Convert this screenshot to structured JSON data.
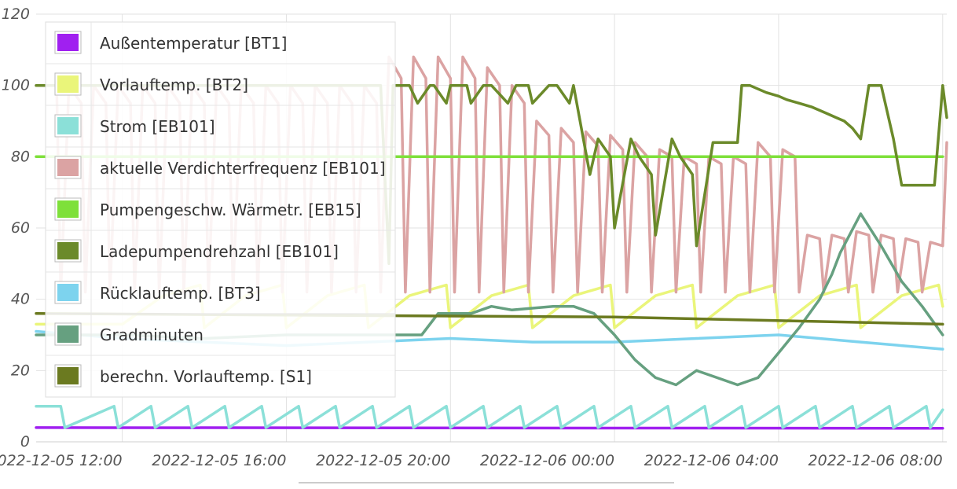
{
  "chart_data": {
    "type": "line",
    "ylim": [
      0,
      120
    ],
    "y_ticks": [
      "0",
      "20",
      "40",
      "60",
      "80",
      "100",
      "120"
    ],
    "x_ticks": [
      "2022-12-05 12:00",
      "2022-12-05 16:00",
      "2022-12-05 20:00",
      "2022-12-06 00:00",
      "2022-12-06 04:00",
      "2022-12-06 08:00"
    ],
    "x_hours": [
      0,
      4,
      8,
      12,
      16,
      20
    ],
    "x_range_hours": [
      -2.1,
      20.1
    ],
    "grid": true,
    "legend_position": "top-left",
    "series": [
      {
        "name": "Außentemperatur [BT1]",
        "color": "#a020f0",
        "x": [
          -2.1,
          20
        ],
        "y": [
          4,
          3.8
        ]
      },
      {
        "name": "Vorlauftemp. [BT2]",
        "color": "#eaf57a",
        "x": [
          -2.1,
          0,
          1,
          1.9,
          2,
          3,
          3.9,
          4,
          5,
          5.9,
          6,
          7,
          7.9,
          8,
          9,
          9.9,
          10,
          11,
          11.9,
          12,
          13,
          13.9,
          14,
          15,
          15.9,
          16,
          17,
          17.9,
          18,
          19,
          19.9,
          20
        ],
        "y": [
          33,
          33,
          41,
          44,
          32,
          41,
          44,
          32,
          41,
          44,
          32,
          41,
          44,
          32,
          41,
          44,
          32,
          41,
          44,
          32,
          41,
          44,
          32,
          41,
          44,
          32,
          41,
          44,
          32,
          41,
          44,
          38
        ]
      },
      {
        "name": "Strom [EB101]",
        "color": "#8be0d8",
        "x": [
          -2.1,
          -1.5,
          -1.4,
          -0.2,
          -0.1,
          0.7,
          0.8,
          1.6,
          1.7,
          2.5,
          2.6,
          3.4,
          3.5,
          4.3,
          4.4,
          5.2,
          5.3,
          6.1,
          6.2,
          7,
          7.1,
          7.9,
          8,
          8.8,
          8.9,
          9.7,
          9.8,
          10.6,
          10.7,
          11.5,
          11.6,
          12.4,
          12.5,
          13.3,
          13.4,
          14.2,
          14.3,
          15.1,
          15.2,
          16,
          16.1,
          16.9,
          17,
          17.8,
          17.9,
          18.7,
          18.8,
          19.6,
          19.7,
          20
        ],
        "y": [
          10,
          10,
          4,
          10,
          4,
          10,
          4,
          10,
          4,
          10,
          4,
          10,
          4,
          10,
          4,
          10,
          4,
          10,
          4,
          10,
          4,
          10,
          4,
          10,
          4,
          10,
          4,
          10,
          4,
          10,
          4,
          10,
          4,
          10,
          4,
          10,
          4,
          10,
          4,
          10,
          4,
          10,
          4,
          10,
          4,
          10,
          4,
          10,
          4,
          9
        ]
      },
      {
        "name": "aktuelle Verdichterfrequenz [EB101]",
        "color": "#dba3a3",
        "x": [
          -2.1,
          -1.6,
          -1.5,
          -1.3,
          -1,
          -0.9,
          -0.7,
          -0.4,
          -0.3,
          -0.1,
          0.2,
          0.3,
          0.5,
          0.8,
          0.9,
          1.1,
          1.4,
          1.5,
          1.7,
          2,
          2.1,
          2.3,
          2.6,
          2.7,
          2.9,
          3.2,
          3.3,
          3.5,
          3.8,
          3.9,
          4.1,
          4.4,
          4.5,
          4.7,
          5,
          5.1,
          5.3,
          5.6,
          5.7,
          5.9,
          6.2,
          6.3,
          6.5,
          6.8,
          6.9,
          7.1,
          7.4,
          7.5,
          7.7,
          8,
          8.1,
          8.3,
          8.6,
          8.7,
          8.9,
          9.2,
          9.3,
          9.5,
          9.8,
          9.9,
          10.1,
          10.4,
          10.5,
          10.7,
          11,
          11.1,
          11.3,
          11.6,
          11.7,
          11.9,
          12.2,
          12.3,
          12.5,
          12.8,
          12.9,
          13.1,
          13.4,
          13.5,
          13.7,
          14,
          14.1,
          14.3,
          14.6,
          14.7,
          14.9,
          15.2,
          15.3,
          15.5,
          15.8,
          15.9,
          16.1,
          16.4,
          16.5,
          16.7,
          17,
          17.1,
          17.3,
          17.6,
          17.7,
          17.9,
          18.2,
          18.3,
          18.5,
          18.8,
          18.9,
          19.1,
          19.4,
          19.5,
          19.7,
          20,
          20.1
        ],
        "y": [
          100,
          100,
          42,
          100,
          95,
          42,
          100,
          95,
          42,
          100,
          95,
          42,
          100,
          95,
          42,
          100,
          95,
          42,
          100,
          95,
          42,
          100,
          95,
          42,
          100,
          95,
          42,
          100,
          95,
          42,
          100,
          95,
          42,
          100,
          95,
          42,
          100,
          95,
          42,
          100,
          95,
          42,
          108,
          102,
          42,
          108,
          102,
          42,
          108,
          102,
          42,
          108,
          102,
          42,
          105,
          100,
          42,
          100,
          95,
          42,
          90,
          86,
          42,
          88,
          84,
          42,
          87,
          83,
          42,
          86,
          82,
          42,
          84,
          80,
          42,
          82,
          80,
          42,
          80,
          78,
          42,
          80,
          78,
          42,
          80,
          78,
          42,
          84,
          80,
          42,
          82,
          80,
          42,
          58,
          57,
          42,
          58,
          57,
          42,
          59,
          58,
          42,
          58,
          57,
          42,
          57,
          56,
          42,
          56,
          55,
          84
        ]
      },
      {
        "name": "Pumpengeschw. Wärmetr. [EB15]",
        "color": "#7ee03a",
        "x": [
          -2.1,
          20
        ],
        "y": [
          80,
          80
        ]
      },
      {
        "name": "Ladepumpendrehzahl [EB101]",
        "color": "#6b8a2a",
        "x": [
          -2.1,
          6.3,
          6.5,
          6.6,
          7,
          7.2,
          7.5,
          7.6,
          7.9,
          8,
          8.4,
          8.5,
          8.8,
          9,
          9.4,
          9.6,
          9.9,
          10,
          10.4,
          10.6,
          10.9,
          11,
          11.4,
          11.6,
          11.9,
          12,
          12.4,
          12.6,
          12.9,
          13,
          13.4,
          13.6,
          13.9,
          14,
          14.4,
          14.6,
          15,
          15.1,
          15.3,
          15.5,
          15.7,
          16,
          16.2,
          16.5,
          16.8,
          17,
          17.2,
          17.4,
          17.6,
          17.8,
          18,
          18.2,
          18.5,
          18.8,
          19,
          19.2,
          19.5,
          19.8,
          20,
          20.1
        ],
        "y": [
          100,
          100,
          50,
          100,
          100,
          95,
          100,
          100,
          95,
          100,
          100,
          95,
          100,
          100,
          95,
          100,
          100,
          95,
          100,
          100,
          95,
          100,
          75,
          85,
          80,
          60,
          85,
          80,
          75,
          58,
          85,
          80,
          75,
          55,
          84,
          84,
          84,
          100,
          100,
          99,
          98,
          97,
          96,
          95,
          94,
          93,
          92,
          91,
          90,
          88,
          85,
          100,
          100,
          85,
          72,
          72,
          72,
          72,
          100,
          91
        ]
      },
      {
        "name": "Rücklauftemp. [BT3]",
        "color": "#7dd3ee",
        "x": [
          -2.1,
          0,
          2,
          4,
          6,
          8,
          10,
          12,
          14,
          16,
          18,
          20
        ],
        "y": [
          31,
          29,
          28,
          27,
          28,
          29,
          28,
          28,
          29,
          30,
          28,
          26
        ]
      },
      {
        "name": "Gradminuten",
        "color": "#66a080",
        "x": [
          -2.1,
          0,
          2,
          4,
          6,
          7.3,
          7.7,
          8.5,
          9,
          9.5,
          10.5,
          11,
          11.5,
          12,
          12.5,
          13,
          13.5,
          14,
          14.5,
          15,
          15.5,
          16,
          16.5,
          17,
          17.3,
          17.5,
          18,
          18.5,
          19,
          19.5,
          20
        ],
        "y": [
          30,
          30,
          29,
          30,
          30,
          30,
          36,
          36,
          38,
          37,
          38,
          38,
          36,
          30,
          23,
          18,
          16,
          20,
          18,
          16,
          18,
          25,
          32,
          40,
          47,
          53,
          64,
          55,
          45,
          38,
          30
        ]
      },
      {
        "name": "berechn. Vorlauftemp. [S1]",
        "color": "#6b7a20",
        "x": [
          -2.1,
          12,
          20
        ],
        "y": [
          36,
          35,
          33
        ]
      }
    ]
  }
}
